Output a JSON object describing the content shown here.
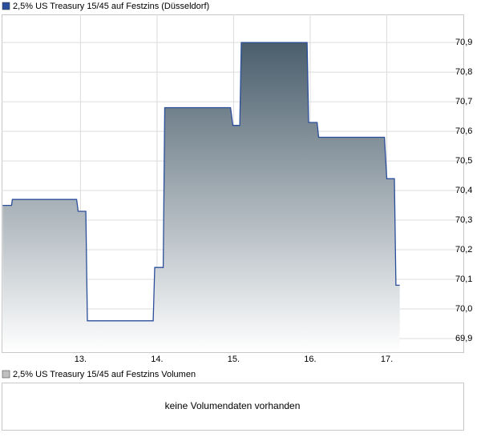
{
  "chart_data": [
    {
      "type": "line",
      "series": [
        {
          "name": "2,5% US Treasury 15/45 auf Festzins (Düsseldorf)",
          "color": "#2b4e9b",
          "values": [
            70.35,
            70.35,
            70.37,
            70.37,
            70.33,
            70.33,
            69.96,
            69.96,
            70.14,
            70.14,
            70.68,
            70.68,
            70.62,
            70.62,
            70.9,
            70.9,
            70.63,
            70.63,
            70.58,
            70.58,
            70.44,
            70.44,
            70.08,
            70.08
          ]
        }
      ],
      "x": [
        11.984,
        12.1,
        12.11,
        12.95,
        12.97,
        13.07,
        13.09,
        13.95,
        13.97,
        14.08,
        14.1,
        14.96,
        14.99,
        15.08,
        15.1,
        15.96,
        15.98,
        16.09,
        16.11,
        16.97,
        17.0,
        17.1,
        17.12,
        17.17
      ],
      "xlim": [
        11.97,
        18.0
      ],
      "xticks": [
        {
          "value": 13,
          "label": "13."
        },
        {
          "value": 14,
          "label": "14."
        },
        {
          "value": 15,
          "label": "15."
        },
        {
          "value": 16,
          "label": "16."
        },
        {
          "value": 17,
          "label": "17."
        }
      ],
      "ylim": [
        69.854,
        70.995
      ],
      "yticks": [
        {
          "value": 69.9,
          "label": "69,9"
        },
        {
          "value": 70.0,
          "label": "70,0"
        },
        {
          "value": 70.1,
          "label": "70,1"
        },
        {
          "value": 70.2,
          "label": "70,2"
        },
        {
          "value": 70.3,
          "label": "70,3"
        },
        {
          "value": 70.4,
          "label": "70,4"
        },
        {
          "value": 70.5,
          "label": "70,5"
        },
        {
          "value": 70.6,
          "label": "70,6"
        },
        {
          "value": 70.7,
          "label": "70,7"
        },
        {
          "value": 70.8,
          "label": "70,8"
        },
        {
          "value": 70.9,
          "label": "70,9"
        }
      ],
      "grid": true
    },
    {
      "type": "volume",
      "title": "2,5% US Treasury 15/45 auf Festzins Volumen",
      "message": "keine Volumendaten vorhanden"
    }
  ]
}
